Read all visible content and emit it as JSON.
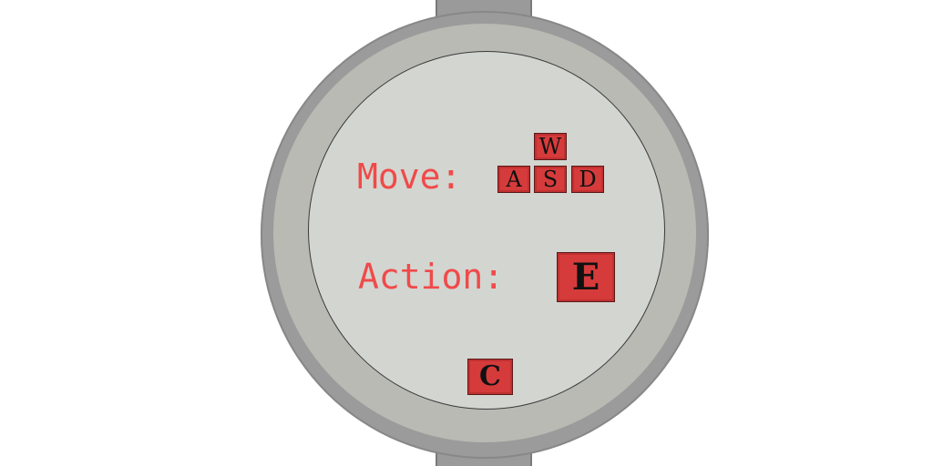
{
  "controls": {
    "move_label": "Move:",
    "action_label": "Action:",
    "move_keys": {
      "up": "W",
      "left": "A",
      "down": "S",
      "right": "D"
    },
    "action_key": "E",
    "extra_key": "C"
  },
  "colors": {
    "label_text": "#f04a4a",
    "key_fill": "#d63b3b",
    "face": "#d3d5d0",
    "ring": "#9b9b9b"
  }
}
